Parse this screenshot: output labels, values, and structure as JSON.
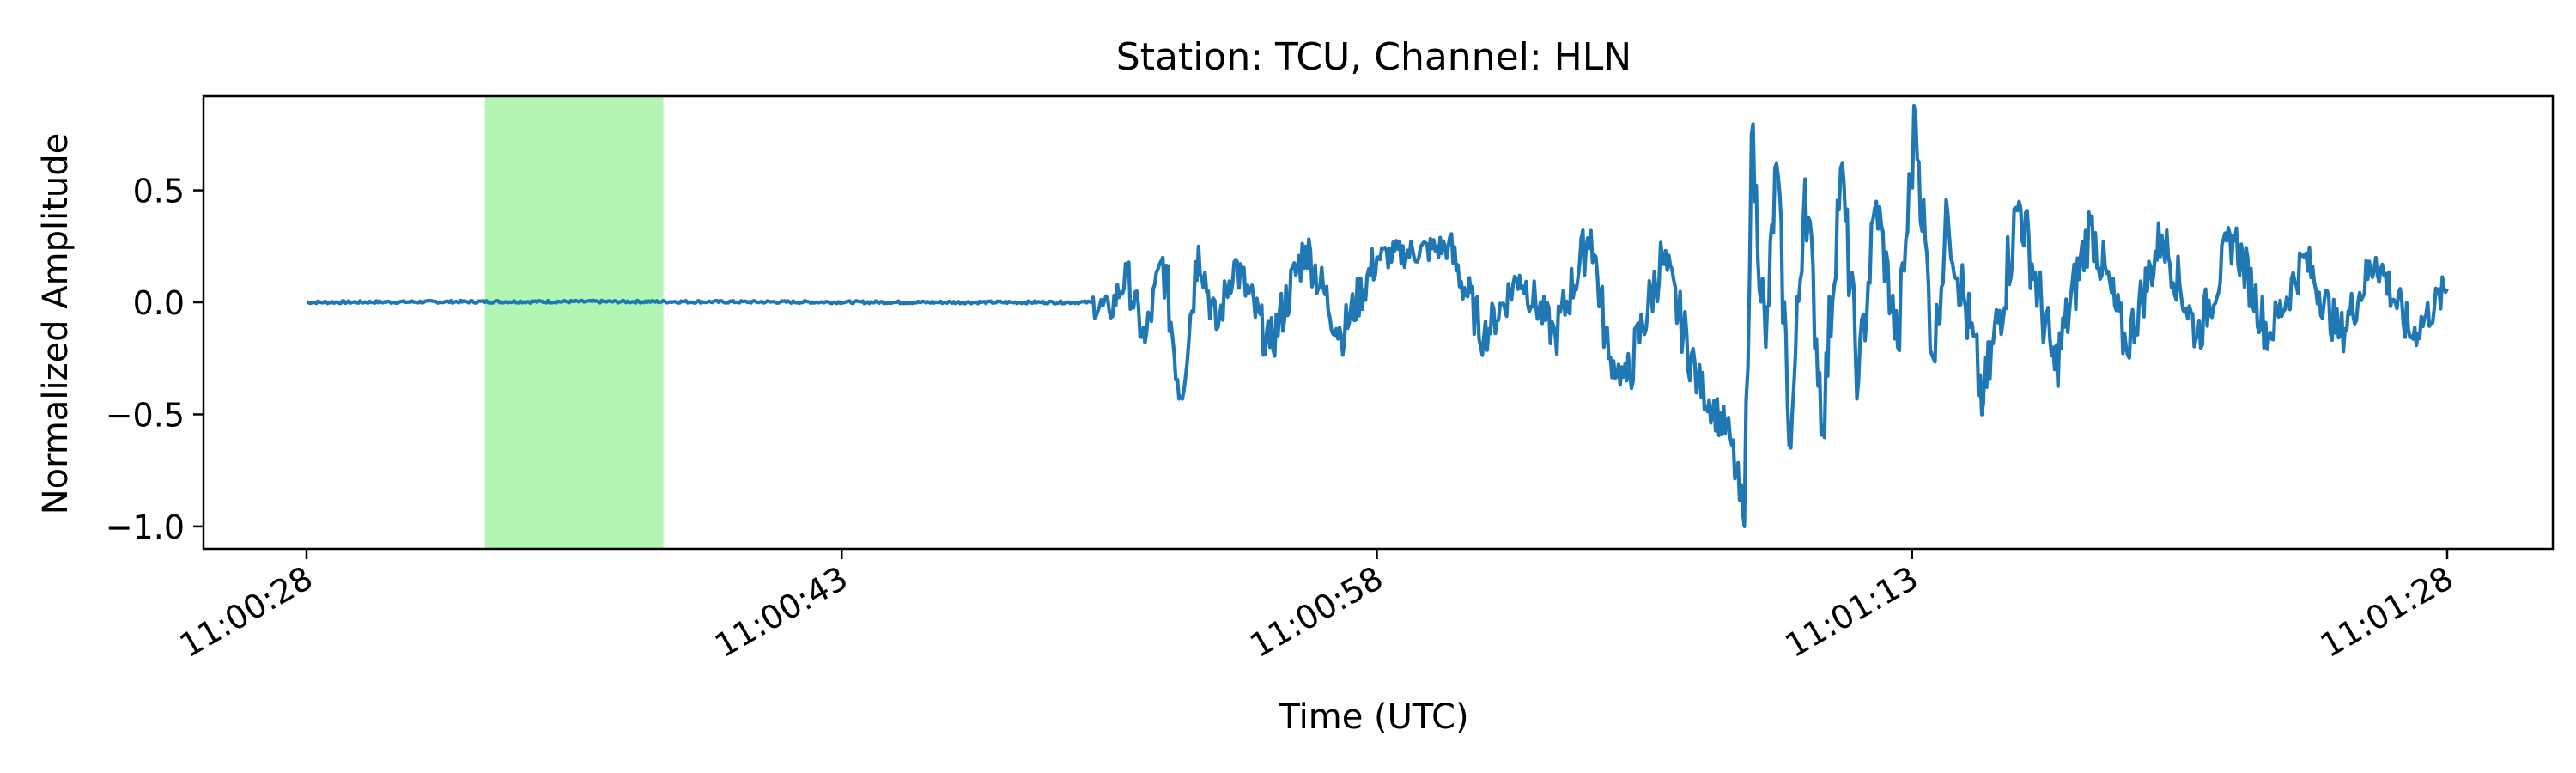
{
  "chart_data": {
    "type": "line",
    "title": "Station: TCU, Channel: HLN",
    "xlabel": "Time (UTC)",
    "ylabel": "Normalized Amplitude",
    "x_start": "11:00:28",
    "x_end": "11:01:28",
    "x_ticks": [
      "11:00:28",
      "11:00:43",
      "11:00:58",
      "11:01:13",
      "11:01:28"
    ],
    "y_ticks": [
      "0.5",
      "0.0",
      "−0.5",
      "−1.0"
    ],
    "ylim": [
      -1.1,
      0.92
    ],
    "highlight_window": {
      "start": "11:00:33",
      "end": "11:00:38",
      "color": "#b3f5b3"
    },
    "colors": {
      "series": "#1f77b4",
      "highlight": "#b3f5b3"
    },
    "grid": false,
    "series": [
      {
        "points": [
          [
            "11:00:28",
            0.0
          ],
          [
            "11:00:33",
            0.003
          ],
          [
            "11:00:38",
            0.003
          ],
          [
            "11:00:45",
            0.0
          ],
          [
            "11:00:50",
            0.0
          ],
          [
            "11:00:50.5",
            -0.04
          ],
          [
            "11:00:51",
            0.12
          ],
          [
            "11:00:51.5",
            -0.18
          ],
          [
            "11:00:52",
            0.2
          ],
          [
            "11:00:52.5",
            -0.42
          ],
          [
            "11:00:53",
            0.25
          ],
          [
            "11:00:53.5",
            -0.12
          ],
          [
            "11:00:54",
            0.18
          ],
          [
            "11:00:55",
            -0.2
          ],
          [
            "11:00:56",
            0.25
          ],
          [
            "11:00:57",
            -0.15
          ],
          [
            "11:00:58",
            0.2
          ],
          [
            "11:01:00",
            0.25
          ],
          [
            "11:01:01",
            -0.15
          ],
          [
            "11:01:02",
            0.12
          ],
          [
            "11:01:03",
            -0.15
          ],
          [
            "11:01:04",
            0.32
          ],
          [
            "11:01:04.5",
            -0.25
          ],
          [
            "11:01:05",
            -0.35
          ],
          [
            "11:01:06",
            0.2
          ],
          [
            "11:01:07",
            -0.35
          ],
          [
            "11:01:07.9",
            -0.6
          ],
          [
            "11:01:08.3",
            -1.0
          ],
          [
            "11:01:08.5",
            0.75
          ],
          [
            "11:01:08.9",
            -0.2
          ],
          [
            "11:01:09.2",
            0.62
          ],
          [
            "11:01:09.6",
            -0.65
          ],
          [
            "11:01:10",
            0.55
          ],
          [
            "11:01:10.5",
            -0.55
          ],
          [
            "11:01:11",
            0.6
          ],
          [
            "11:01:11.5",
            -0.35
          ],
          [
            "11:01:12",
            0.45
          ],
          [
            "11:01:12.6",
            -0.2
          ],
          [
            "11:01:13.1",
            0.83
          ],
          [
            "11:01:13.6",
            -0.25
          ],
          [
            "11:01:14",
            0.4
          ],
          [
            "11:01:15",
            -0.45
          ],
          [
            "11:01:16",
            0.45
          ],
          [
            "11:01:17",
            -0.3
          ],
          [
            "11:01:18",
            0.35
          ],
          [
            "11:01:19",
            -0.2
          ],
          [
            "11:01:20",
            0.3
          ],
          [
            "11:01:21",
            -0.15
          ],
          [
            "11:01:22",
            0.3
          ],
          [
            "11:01:23",
            -0.15
          ],
          [
            "11:01:24",
            0.2
          ],
          [
            "11:01:25",
            -0.15
          ],
          [
            "11:01:26",
            0.2
          ],
          [
            "11:01:27",
            -0.15
          ],
          [
            "11:01:28",
            0.06
          ]
        ]
      }
    ]
  }
}
